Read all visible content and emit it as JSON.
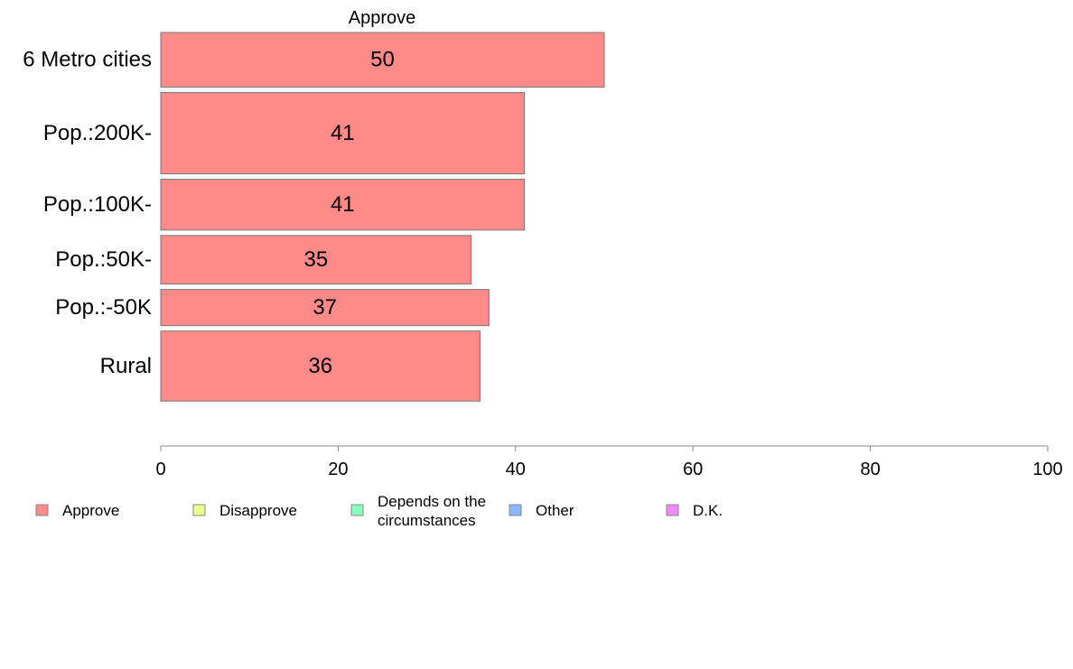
{
  "chart_data": {
    "type": "bar",
    "orientation": "horizontal",
    "panel_title": "Approve",
    "categories": [
      "6 Metro cities",
      "Pop.:200K-",
      "Pop.:100K-",
      "Pop.:50K-",
      "Pop.:-50K",
      "Rural"
    ],
    "series": [
      {
        "name": "Approve",
        "values": [
          50,
          41,
          41,
          35,
          37,
          36
        ]
      }
    ],
    "relative_bar_widths": [
      0.145,
      0.216,
      0.135,
      0.129,
      0.096,
      0.186
    ],
    "xlim": [
      0,
      100
    ],
    "xticks": [
      "0",
      "20",
      "40",
      "60",
      "80",
      "100"
    ],
    "grid": false,
    "legend": {
      "placement": "bottom",
      "entries": [
        {
          "label": "Approve",
          "color": "#ff8a8a"
        },
        {
          "label": "Disapprove",
          "color": "#eeff8a"
        },
        {
          "label": "Depends on the circumstances",
          "lines": [
            "Depends on the",
            "circumstances"
          ],
          "color": "#8affc0"
        },
        {
          "label": "Other",
          "color": "#8ab8ff"
        },
        {
          "label": "D.K.",
          "color": "#f08aff"
        }
      ]
    },
    "bar_color": "#ff8a8a",
    "bar_stroke": "#777777"
  }
}
